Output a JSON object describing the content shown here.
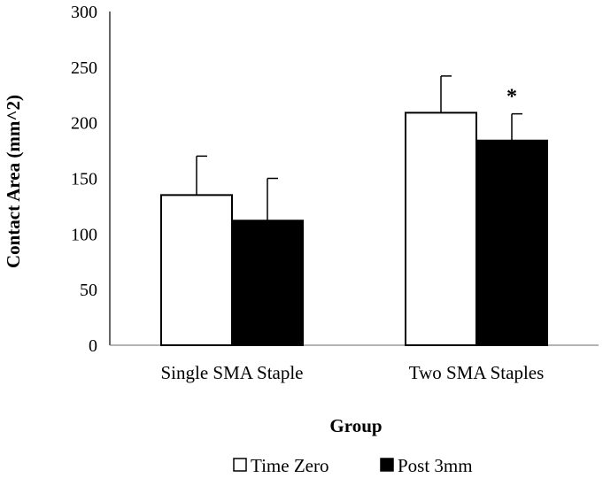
{
  "chart_data": {
    "type": "bar",
    "title": "",
    "xlabel": "Group",
    "ylabel": "Contact Area (mm^2)",
    "ylim": [
      0,
      300
    ],
    "yticks": [
      0,
      50,
      100,
      150,
      200,
      250,
      300
    ],
    "grid": false,
    "legend_position": "bottom",
    "categories": [
      "Single SMA Staple",
      "Two SMA Staples"
    ],
    "series": [
      {
        "name": "Time Zero",
        "color": "#ffffff",
        "values": [
          135,
          209
        ],
        "errors": [
          35,
          33
        ]
      },
      {
        "name": "Post 3mm",
        "color": "#000000",
        "values": [
          112,
          184
        ],
        "errors": [
          38,
          24
        ]
      }
    ],
    "annotations": [
      {
        "text": "*",
        "category": "Two SMA Staples",
        "series": "Post 3mm"
      }
    ]
  }
}
